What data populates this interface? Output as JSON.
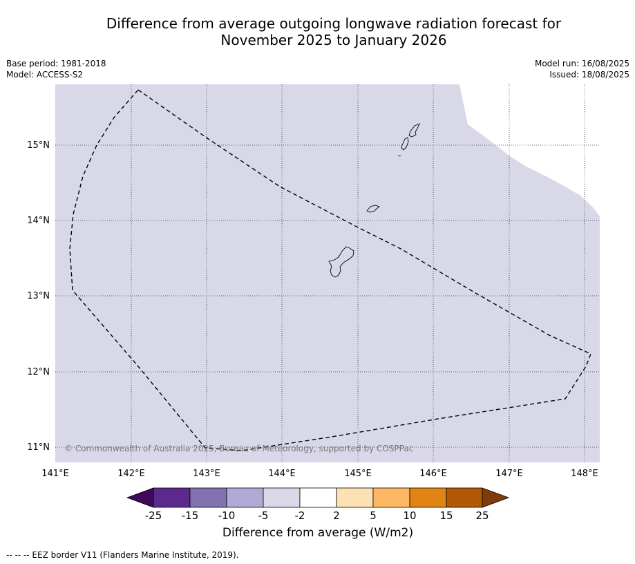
{
  "title_line1": "Difference from average outgoing longwave radiation forecast for",
  "title_line2": "November 2025 to January 2026",
  "meta_left": {
    "base_period": "Base period: 1981-2018",
    "model": "Model: ACCESS-S2"
  },
  "meta_right": {
    "model_run": "Model run: 16/08/2025",
    "issued": "Issued: 18/08/2025"
  },
  "map": {
    "lat_labels": [
      "15°N",
      "14°N",
      "13°N",
      "12°N",
      "11°N"
    ],
    "lon_labels": [
      "141°E",
      "142°E",
      "143°E",
      "144°E",
      "145°E",
      "146°E",
      "147°E",
      "148°E"
    ],
    "fill_color": "#d8d8e8",
    "copyright": "© Commonwealth of Australia 2025, Bureau of Meteorology, supported by COSPPac",
    "border_style": "dashed",
    "grid": "dotted"
  },
  "colorbar": {
    "tick_labels": [
      "-25",
      "-15",
      "-10",
      "-5",
      "-2",
      "2",
      "5",
      "10",
      "15",
      "25"
    ],
    "colors": [
      "#3f0a5b",
      "#5b2a8c",
      "#8272b0",
      "#b1aad4",
      "#d8d8e8",
      "#ffffff",
      "#fde0b4",
      "#fdb865",
      "#e08416",
      "#b35805",
      "#7f3b08"
    ],
    "label": "Difference from average (W/m2)"
  },
  "footnote": "--  --  -- EEZ border V11 (Flanders Marine Institute, 2019)."
}
